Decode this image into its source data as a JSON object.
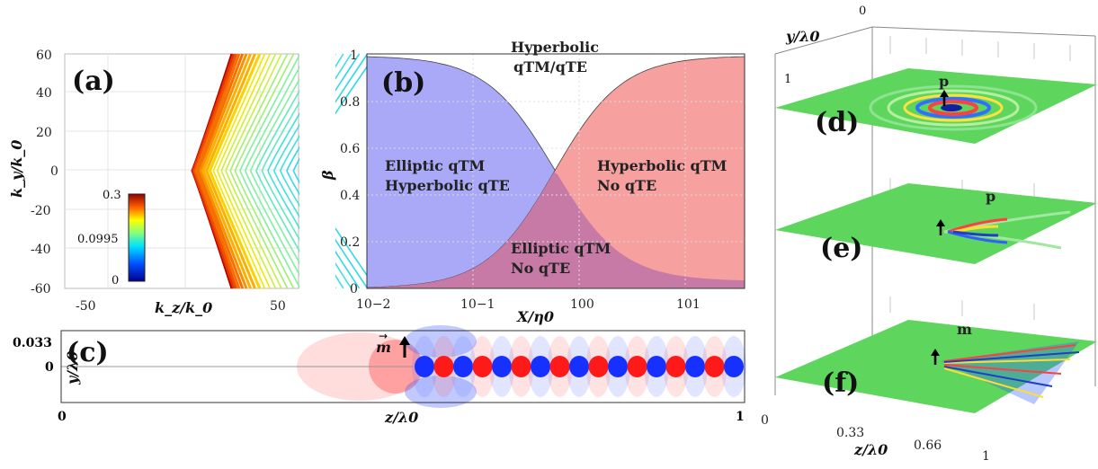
{
  "panel_a": {
    "label": "(a)",
    "xlabel": "k_z/k_0",
    "ylabel": "k_y/k_0",
    "xticks": [
      "-50",
      "50"
    ],
    "yticks": [
      "60",
      "40",
      "20",
      "0",
      "-20",
      "-40",
      "-60"
    ],
    "colorbar": {
      "max": "0.3",
      "mid": "0.0995",
      "min": "0"
    }
  },
  "panel_b": {
    "label": "(b)",
    "xlabel": "X/η0",
    "ylabel": "β",
    "yticks": [
      "1",
      "0.8",
      "0.6",
      "0.4",
      "0.2",
      "0"
    ],
    "xticks": [
      "10−2",
      "10−1",
      "100",
      "101"
    ],
    "regions": {
      "top_line1": "Hyperbolic",
      "top_line2": "qTM/qTE",
      "left_line1": "Elliptic qTM",
      "left_line2": "Hyperbolic qTE",
      "right_line1": "Hyperbolic qTM",
      "right_line2": "No qTE",
      "bottom_line1": "Elliptic qTM",
      "bottom_line2": "No qTE"
    },
    "colors": {
      "blue_region": "#a9a9f7",
      "red_region": "#f7a0a0",
      "overlap": "#c77aa6"
    }
  },
  "panel_c": {
    "label": "(c)",
    "xlabel": "z/λ0",
    "ylabel": "y/λ0",
    "yticks": [
      "0.033",
      "0"
    ],
    "xticks": [
      "0",
      "1"
    ],
    "source_label": "m"
  },
  "panel_def": {
    "labels": [
      "(d)",
      "(e)",
      "(f)"
    ],
    "source_labels": [
      "p",
      "p",
      "m"
    ],
    "y_axis_label": "y/λ0",
    "y_ticks": [
      "0",
      "1"
    ],
    "z_axis_label": "z/λ0",
    "z_ticks": [
      "0",
      "0.33",
      "0.66",
      "1"
    ]
  }
}
